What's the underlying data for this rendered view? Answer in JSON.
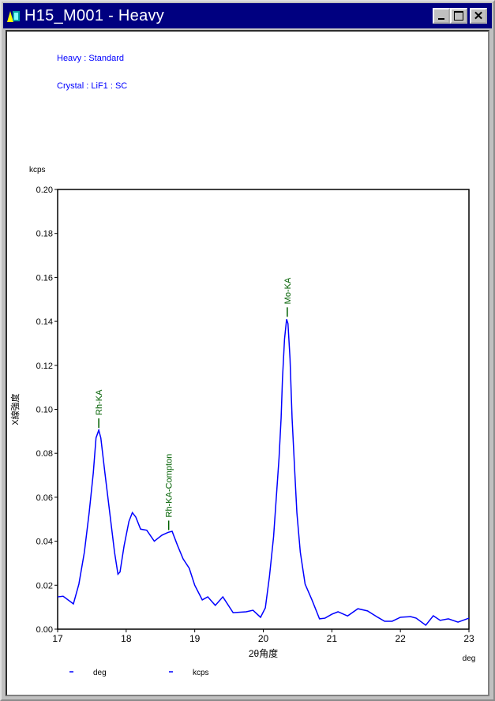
{
  "window": {
    "title": "H15_M001 - Heavy",
    "buttons": [
      "minimize",
      "maximize",
      "close"
    ],
    "title_bar_color": "#000080"
  },
  "info": {
    "line1": "Heavy : Standard",
    "line2": "Crystal : LiF1 : SC"
  },
  "chart_data": {
    "type": "line",
    "title": "",
    "xlabel": "2θ角度",
    "x_unit": "deg",
    "ylabel": "X線強度",
    "y_unit": "kcps",
    "xlim": [
      17,
      23
    ],
    "ylim": [
      0,
      0.2
    ],
    "x_ticks": [
      "17",
      "18",
      "19",
      "20",
      "21",
      "22",
      "23"
    ],
    "y_ticks": [
      "0.00",
      "0.02",
      "0.04",
      "0.06",
      "0.08",
      "0.10",
      "0.12",
      "0.14",
      "0.16",
      "0.18",
      "0.20"
    ],
    "grid": false,
    "line_color": "#0000ff",
    "annotation_color": "#006000",
    "legend": {
      "placement": "bottom-left",
      "entries": [
        "deg",
        "kcps"
      ]
    },
    "annotations": [
      {
        "label": "Rh-KA",
        "x": 17.6,
        "y": 0.0905
      },
      {
        "label": "Rh-KA-Compton",
        "x": 18.62,
        "y": 0.044
      },
      {
        "label": "Mo-KA",
        "x": 20.35,
        "y": 0.141
      }
    ],
    "series": [
      {
        "x": [
          17.0,
          17.08,
          17.23,
          17.31,
          17.39,
          17.46,
          17.52,
          17.56,
          17.6,
          17.63,
          17.69,
          17.76,
          17.83,
          17.88,
          17.91,
          17.97,
          18.04,
          18.09,
          18.14,
          18.21,
          18.3,
          18.41,
          18.52,
          18.61,
          18.67,
          18.75,
          18.83,
          18.92,
          19.0,
          19.11,
          19.19,
          19.3,
          19.41,
          19.56,
          19.75,
          19.85,
          19.96,
          20.03,
          20.09,
          20.15,
          20.19,
          20.23,
          20.26,
          20.28,
          20.31,
          20.34,
          20.36,
          20.39,
          20.42,
          20.46,
          20.49,
          20.54,
          20.61,
          20.71,
          20.82,
          20.9,
          21.0,
          21.09,
          21.23,
          21.38,
          21.52,
          21.67,
          21.77,
          21.88,
          22.0,
          22.15,
          22.23,
          22.37,
          22.48,
          22.58,
          22.7,
          22.84,
          23.0
        ],
        "y": [
          0.0147,
          0.015,
          0.0115,
          0.0205,
          0.035,
          0.053,
          0.071,
          0.087,
          0.0905,
          0.087,
          0.071,
          0.053,
          0.035,
          0.025,
          0.026,
          0.038,
          0.049,
          0.053,
          0.051,
          0.0455,
          0.045,
          0.04,
          0.0427,
          0.044,
          0.0445,
          0.038,
          0.032,
          0.0277,
          0.02,
          0.0133,
          0.0147,
          0.0108,
          0.0147,
          0.0075,
          0.0079,
          0.0086,
          0.0054,
          0.0097,
          0.024,
          0.042,
          0.06,
          0.078,
          0.096,
          0.114,
          0.132,
          0.141,
          0.139,
          0.123,
          0.096,
          0.071,
          0.053,
          0.035,
          0.0205,
          0.0133,
          0.0047,
          0.005,
          0.0068,
          0.0079,
          0.006,
          0.0093,
          0.0083,
          0.0054,
          0.0036,
          0.0036,
          0.0054,
          0.0057,
          0.005,
          0.0018,
          0.0061,
          0.004,
          0.0047,
          0.0032,
          0.005
        ]
      }
    ]
  }
}
